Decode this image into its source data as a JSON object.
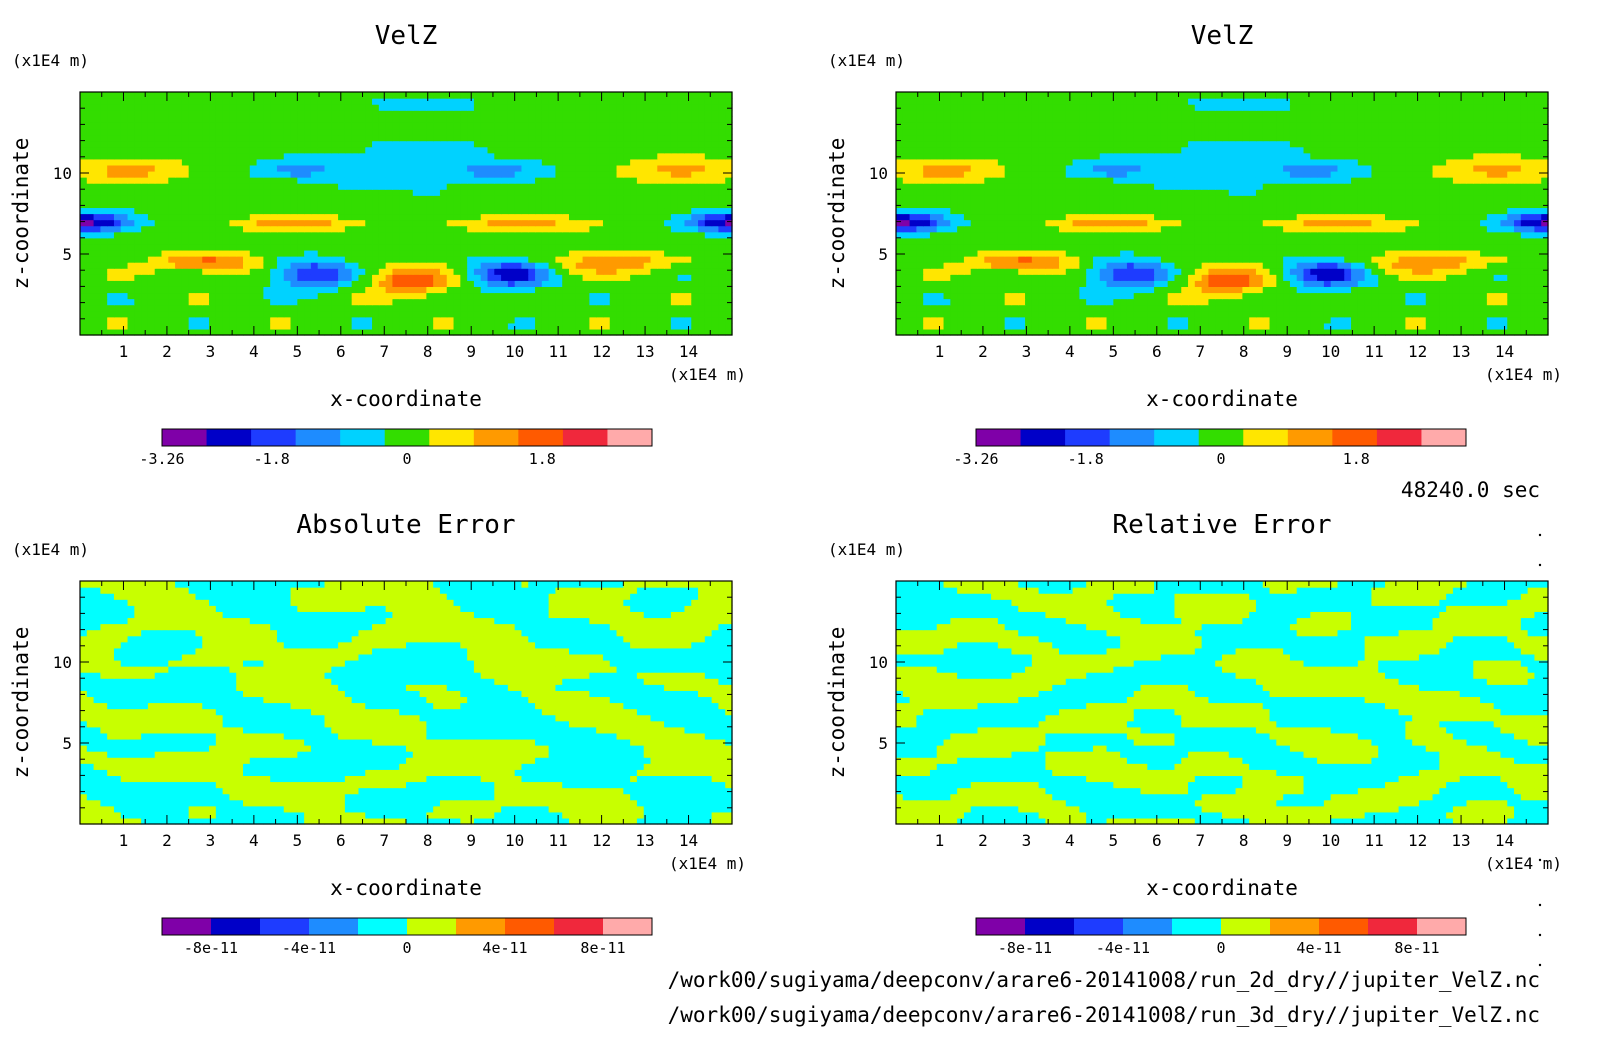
{
  "colors": {
    "velz_scale": [
      "#7f00a8",
      "#0000c8",
      "#1e3cff",
      "#1e8cff",
      "#00d2ff",
      "#33dd00",
      "#ffe600",
      "#ff9a00",
      "#ff5a00",
      "#f0283c",
      "#ffaaaa"
    ],
    "err_scale": [
      "#7f00a8",
      "#0000c8",
      "#1e3cff",
      "#1e8cff",
      "#00ffff",
      "#c8ff00",
      "#ff9a00",
      "#ff5a00",
      "#f0283c",
      "#ffaaaa"
    ]
  },
  "time_label": "48240.0 sec",
  "footer": {
    "line1": "/work00/sugiyama/deepconv/arare6-20141008/run_2d_dry//jupiter_VelZ.nc",
    "line2": "/work00/sugiyama/deepconv/arare6-20141008/run_3d_dry//jupiter_VelZ.nc"
  },
  "chart_data": [
    {
      "type": "heatmap",
      "title": "VelZ",
      "xlabel": "x-coordinate",
      "ylabel": "z-coordinate",
      "x_unit": "(x1E4 m)",
      "y_unit": "(x1E4 m)",
      "xlim": [
        0,
        15
      ],
      "ylim": [
        0,
        15
      ],
      "x_ticks": [
        "1",
        "2",
        "3",
        "4",
        "5",
        "6",
        "7",
        "8",
        "9",
        "10",
        "11",
        "12",
        "13",
        "14"
      ],
      "y_ticks": [
        "5",
        "10"
      ],
      "colorbar": {
        "levels": 11,
        "range": [
          -3.26,
          3.26
        ],
        "ticks": [
          "-3.26",
          "-1.8",
          "0",
          "1.8"
        ]
      },
      "field": "velz"
    },
    {
      "type": "heatmap",
      "title": "VelZ",
      "xlabel": "x-coordinate",
      "ylabel": "z-coordinate",
      "x_unit": "(x1E4 m)",
      "y_unit": "(x1E4 m)",
      "xlim": [
        0,
        15
      ],
      "ylim": [
        0,
        15
      ],
      "x_ticks": [
        "1",
        "2",
        "3",
        "4",
        "5",
        "6",
        "7",
        "8",
        "9",
        "10",
        "11",
        "12",
        "13",
        "14"
      ],
      "y_ticks": [
        "5",
        "10"
      ],
      "colorbar": {
        "levels": 11,
        "range": [
          -3.26,
          3.26
        ],
        "ticks": [
          "-3.26",
          "-1.8",
          "0",
          "1.8"
        ]
      },
      "field": "velz"
    },
    {
      "type": "heatmap",
      "title": "Absolute Error",
      "xlabel": "x-coordinate",
      "ylabel": "z-coordinate",
      "x_unit": "(x1E4 m)",
      "y_unit": "(x1E4 m)",
      "xlim": [
        0,
        15
      ],
      "ylim": [
        0,
        15
      ],
      "x_ticks": [
        "1",
        "2",
        "3",
        "4",
        "5",
        "6",
        "7",
        "8",
        "9",
        "10",
        "11",
        "12",
        "13",
        "14"
      ],
      "y_ticks": [
        "5",
        "10"
      ],
      "colorbar": {
        "levels": 10,
        "range": [
          -1e-10,
          1e-10
        ],
        "ticks": [
          "-8e-11",
          "-4e-11",
          "0",
          "4e-11",
          "8e-11"
        ]
      },
      "field": "abs_err"
    },
    {
      "type": "heatmap",
      "title": "Relative Error",
      "xlabel": "x-coordinate",
      "ylabel": "z-coordinate",
      "x_unit": "(x1E4 m)",
      "y_unit": "(x1E4 m)",
      "xlim": [
        0,
        15
      ],
      "ylim": [
        0,
        15
      ],
      "x_ticks": [
        "1",
        "2",
        "3",
        "4",
        "5",
        "6",
        "7",
        "8",
        "9",
        "10",
        "11",
        "12",
        "13",
        "14"
      ],
      "y_ticks": [
        "5",
        "10"
      ],
      "colorbar": {
        "levels": 10,
        "range": [
          -1e-10,
          1e-10
        ],
        "ticks": [
          "-8e-11",
          "-4e-11",
          "0",
          "4e-11",
          "8e-11"
        ]
      },
      "field": "rel_err"
    }
  ]
}
